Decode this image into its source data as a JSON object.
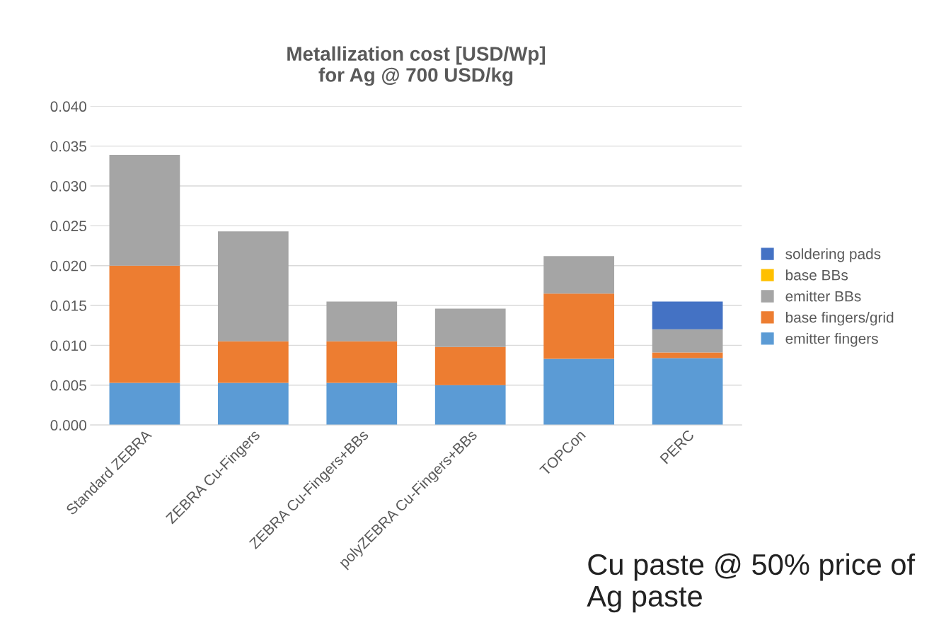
{
  "chart_data": {
    "type": "bar",
    "stacked": true,
    "title": "Metallization cost [USD/Wp]\nfor Ag @ 700 USD/kg",
    "categories": [
      "Standard ZEBRA",
      "ZEBRA Cu-Fingers",
      "ZEBRA Cu-Fingers+BBs",
      "polyZEBRA Cu-Fingers+BBs",
      "TOPCon",
      "PERC"
    ],
    "series": [
      {
        "name": "emitter fingers",
        "color": "#5b9bd5",
        "values": [
          0.0053,
          0.0053,
          0.0053,
          0.005,
          0.0083,
          0.0084
        ]
      },
      {
        "name": "base fingers/grid",
        "color": "#ed7d31",
        "values": [
          0.0147,
          0.0052,
          0.0052,
          0.0048,
          0.0082,
          0.0007
        ]
      },
      {
        "name": "emitter BBs",
        "color": "#a5a5a5",
        "values": [
          0.0139,
          0.0138,
          0.005,
          0.0048,
          0.0047,
          0.0029
        ]
      },
      {
        "name": "base BBs",
        "color": "#ffc000",
        "values": [
          0,
          0,
          0,
          0,
          0,
          0
        ]
      },
      {
        "name": "soldering pads",
        "color": "#4472c4",
        "values": [
          0,
          0,
          0,
          0,
          0,
          0.0035
        ]
      }
    ],
    "ylim": [
      0,
      0.04
    ],
    "yticks": [
      {
        "value": 0,
        "label": "0.000"
      },
      {
        "value": 0.005,
        "label": "0.005"
      },
      {
        "value": 0.01,
        "label": "0.010"
      },
      {
        "value": 0.015,
        "label": "0.015"
      },
      {
        "value": 0.02,
        "label": "0.020"
      },
      {
        "value": 0.025,
        "label": "0.025"
      },
      {
        "value": 0.03,
        "label": "0.030"
      },
      {
        "value": 0.035,
        "label": "0.035"
      },
      {
        "value": 0.04,
        "label": "0.040"
      }
    ],
    "grid": "y",
    "legend": "right",
    "annotations": [
      "Cu paste @ 50% price of\nAg paste"
    ]
  }
}
